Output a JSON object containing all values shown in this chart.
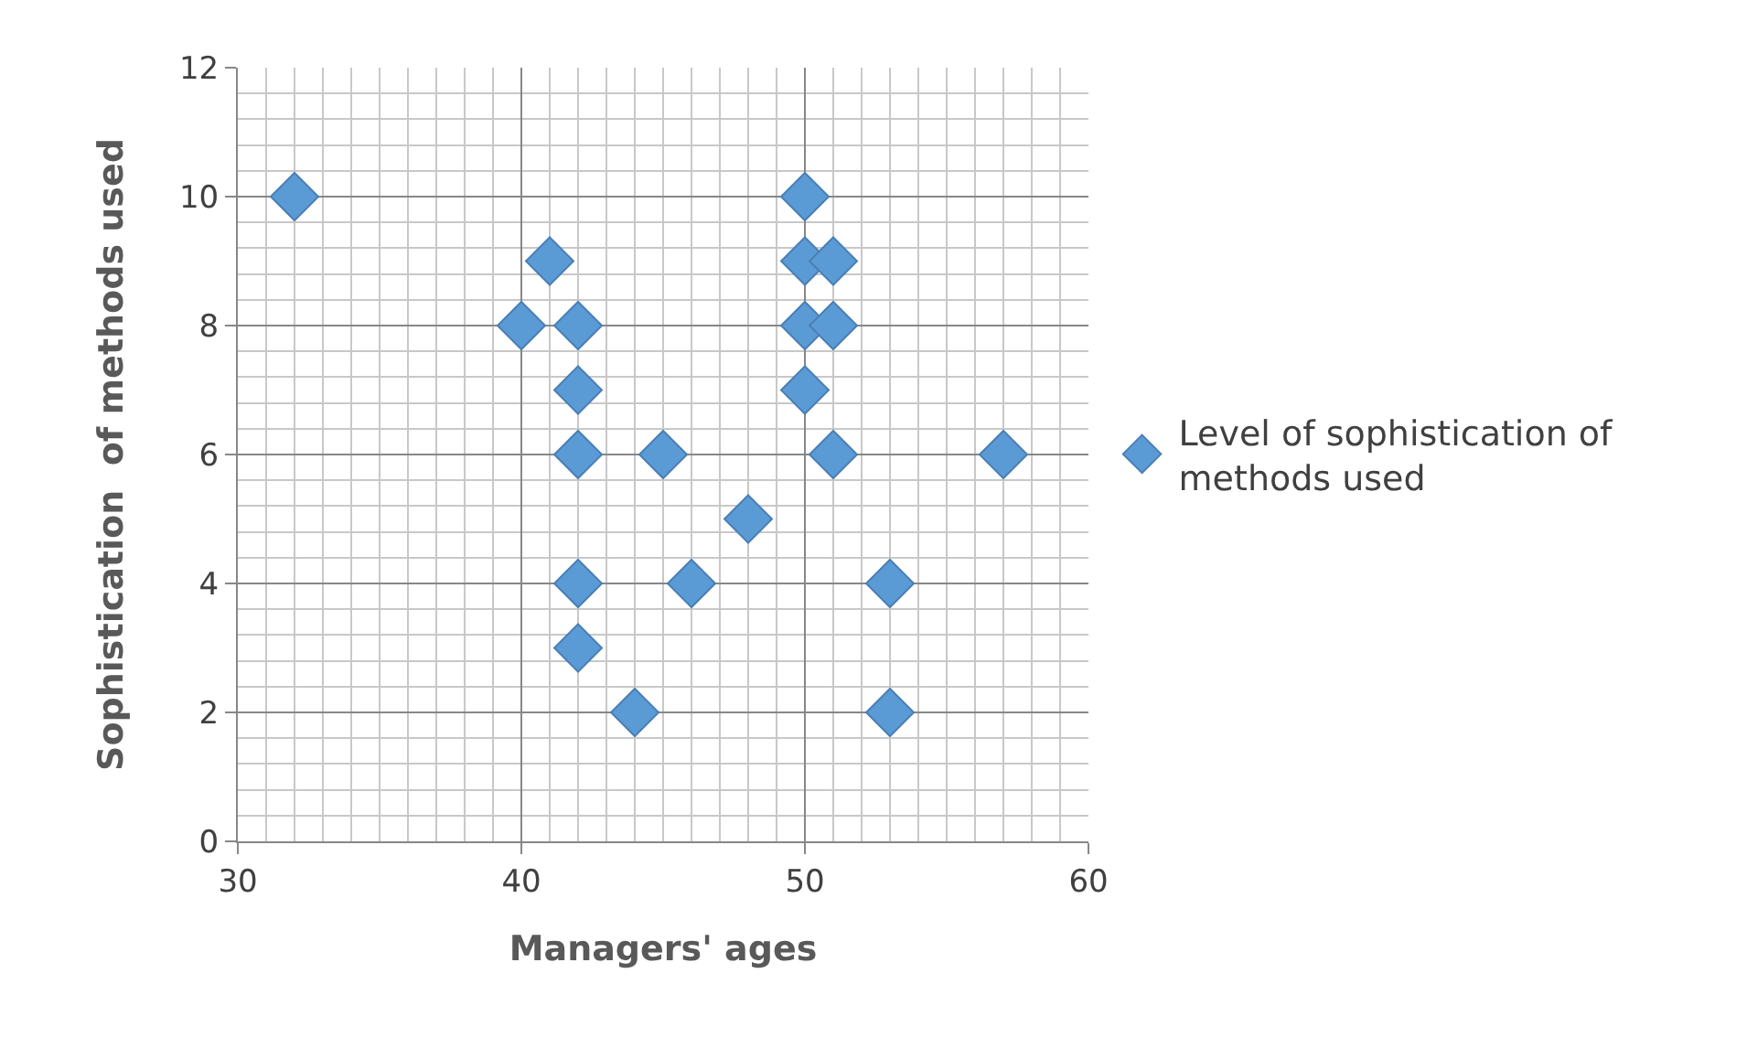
{
  "chart_data": {
    "type": "scatter",
    "xlabel": "Managers' ages",
    "ylabel": "Sophistication  of methods used",
    "x": [
      32,
      41,
      40,
      42,
      42,
      42,
      45,
      48,
      46,
      42,
      42,
      44,
      50,
      50,
      51,
      50,
      51,
      50,
      51,
      57,
      53,
      53
    ],
    "series": [
      {
        "name": "Level of sophistication of methods used",
        "color": "#5b9bd5",
        "values": [
          10,
          9,
          8,
          8,
          7,
          6,
          6,
          5,
          4,
          4,
          3,
          2,
          10,
          9,
          9,
          8,
          8,
          7,
          6,
          6,
          4,
          2
        ]
      }
    ],
    "xlim": [
      30,
      60
    ],
    "xticks": [
      30,
      40,
      50,
      60
    ],
    "ylim": [
      0,
      12
    ],
    "yticks": [
      0,
      2,
      4,
      6,
      8,
      10,
      12
    ],
    "grid": true,
    "legend": "right",
    "marker": "diamond"
  }
}
